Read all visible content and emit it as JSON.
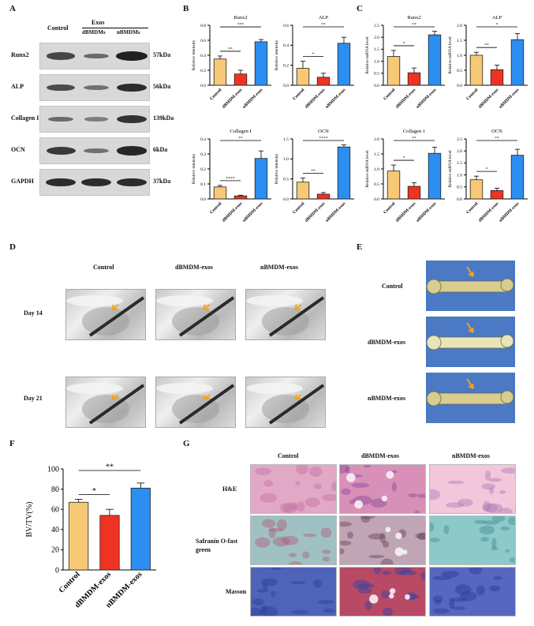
{
  "panels": {
    "a": "A",
    "b": "B",
    "c": "C",
    "d": "D",
    "e": "E",
    "f": "F",
    "g": "G"
  },
  "colors": {
    "control": "#f7c875",
    "dbmdm": "#ee3322",
    "nbmdm": "#2c8ef0",
    "bar_edge": "#222222"
  },
  "western": {
    "group_header": "Exos",
    "columns": [
      "Control",
      "dBMDMs",
      "nBMDMs"
    ],
    "rows": [
      {
        "protein": "Runx2",
        "kda": "57kDa",
        "intensity": [
          0.65,
          0.35,
          0.95
        ]
      },
      {
        "protein": "ALP",
        "kda": "56kDa",
        "intensity": [
          0.6,
          0.3,
          0.85
        ]
      },
      {
        "protein": "Collagen I",
        "kda": "139kDa",
        "intensity": [
          0.35,
          0.2,
          0.8
        ]
      },
      {
        "protein": "OCN",
        "kda": "6kDa",
        "intensity": [
          0.75,
          0.3,
          0.9
        ]
      },
      {
        "protein": "GAPDH",
        "kda": "37kDa",
        "intensity": [
          0.85,
          0.85,
          0.85
        ]
      }
    ]
  },
  "xray": {
    "columns": [
      "Control",
      "dBMDM-exos",
      "nBMDM-exos"
    ],
    "rows": [
      "Day 14",
      "Day 21"
    ]
  },
  "gross": {
    "rows": [
      "Control",
      "dBMDM-exos",
      "nBMDM-exos"
    ]
  },
  "histology": {
    "columns": [
      "Control",
      "dBMDM-exos",
      "nBMDM-exos"
    ],
    "rows": [
      "H&E",
      "Safranin O-fast green",
      "Masson"
    ]
  },
  "chart_data": [
    {
      "panel": "B",
      "type": "bar",
      "title": "Runx2",
      "ylabel": "Relative intensity",
      "categories": [
        "Control",
        "dBMDM-exos",
        "nBMDM-exos"
      ],
      "values": [
        0.35,
        0.15,
        0.58
      ],
      "errors": [
        0.04,
        0.05,
        0.03
      ],
      "ylim": [
        0,
        0.8
      ],
      "yticks": [
        "0.0",
        "0.2",
        "0.4",
        "0.6",
        "0.8"
      ],
      "sig": [
        {
          "a": 0,
          "b": 1,
          "label": "**"
        },
        {
          "a": 0,
          "b": 2,
          "label": "***"
        }
      ]
    },
    {
      "panel": "B",
      "type": "bar",
      "title": "ALP",
      "ylabel": "Relative intensity",
      "categories": [
        "Control",
        "dBMDM-exos",
        "nBMDM-exos"
      ],
      "values": [
        0.17,
        0.08,
        0.42
      ],
      "errors": [
        0.07,
        0.04,
        0.06
      ],
      "ylim": [
        0,
        0.6
      ],
      "yticks": [
        "0.0",
        "0.2",
        "0.4",
        "0.6"
      ],
      "sig": [
        {
          "a": 0,
          "b": 1,
          "label": "*"
        },
        {
          "a": 0,
          "b": 2,
          "label": "**"
        }
      ]
    },
    {
      "panel": "C",
      "type": "bar",
      "title": "Runx2",
      "ylabel": "Relative mRNA level",
      "categories": [
        "Control",
        "dBMDM-exos",
        "nBMDM-exos"
      ],
      "values": [
        1.2,
        0.52,
        2.1
      ],
      "errors": [
        0.25,
        0.2,
        0.15
      ],
      "ylim": [
        0,
        2.5
      ],
      "yticks": [
        "0.0",
        "0.5",
        "1.0",
        "1.5",
        "2.0",
        "2.5"
      ],
      "sig": [
        {
          "a": 0,
          "b": 1,
          "label": "*"
        },
        {
          "a": 0,
          "b": 2,
          "label": "**"
        }
      ]
    },
    {
      "panel": "C",
      "type": "bar",
      "title": "ALP",
      "ylabel": "Relative mRNA level",
      "categories": [
        "Control",
        "dBMDM-exos",
        "nBMDM-exos"
      ],
      "values": [
        1.0,
        0.52,
        1.52
      ],
      "errors": [
        0.1,
        0.15,
        0.2
      ],
      "ylim": [
        0,
        2.0
      ],
      "yticks": [
        "0.0",
        "0.5",
        "1.0",
        "1.5",
        "2.0"
      ],
      "sig": [
        {
          "a": 0,
          "b": 1,
          "label": "**"
        },
        {
          "a": 0,
          "b": 2,
          "label": "*"
        }
      ]
    },
    {
      "panel": "B",
      "type": "bar",
      "title": "Collagen I",
      "ylabel": "Relative intensity",
      "categories": [
        "Control",
        "dBMDM-exos",
        "nBMDM-exos"
      ],
      "values": [
        0.08,
        0.02,
        0.27
      ],
      "errors": [
        0.01,
        0.005,
        0.05
      ],
      "ylim": [
        0,
        0.4
      ],
      "yticks": [
        "0.0",
        "0.1",
        "0.2",
        "0.3",
        "0.4"
      ],
      "sig": [
        {
          "a": 0,
          "b": 1,
          "label": "****"
        },
        {
          "a": 0,
          "b": 2,
          "label": "**"
        }
      ]
    },
    {
      "panel": "B",
      "type": "bar",
      "title": "OCN",
      "ylabel": "Relative intensity",
      "categories": [
        "Control",
        "dBMDM-exos",
        "nBMDM-exos"
      ],
      "values": [
        0.42,
        0.12,
        1.3
      ],
      "errors": [
        0.1,
        0.04,
        0.05
      ],
      "ylim": [
        0,
        1.5
      ],
      "yticks": [
        "0.0",
        "0.5",
        "1.0",
        "1.5"
      ],
      "sig": [
        {
          "a": 0,
          "b": 1,
          "label": "**"
        },
        {
          "a": 0,
          "b": 2,
          "label": "****"
        }
      ]
    },
    {
      "panel": "C",
      "type": "bar",
      "title": "Collagen 1",
      "ylabel": "Relative mRNA level",
      "categories": [
        "Control",
        "dBMDM-exos",
        "nBMDM-exos"
      ],
      "values": [
        0.93,
        0.42,
        1.52
      ],
      "errors": [
        0.2,
        0.12,
        0.2
      ],
      "ylim": [
        0,
        2.0
      ],
      "yticks": [
        "0.0",
        "0.5",
        "1.0",
        "1.5",
        "2.0"
      ],
      "sig": [
        {
          "a": 0,
          "b": 1,
          "label": "*"
        },
        {
          "a": 0,
          "b": 2,
          "label": "**"
        }
      ]
    },
    {
      "panel": "C",
      "type": "bar",
      "title": "OCN",
      "ylabel": "Relative mRNA level",
      "categories": [
        "Control",
        "dBMDM-exos",
        "nBMDM-exos"
      ],
      "values": [
        0.8,
        0.35,
        1.82
      ],
      "errors": [
        0.15,
        0.1,
        0.25
      ],
      "ylim": [
        0,
        2.5
      ],
      "yticks": [
        "0.0",
        "0.5",
        "1.0",
        "1.5",
        "2.0",
        "2.5"
      ],
      "sig": [
        {
          "a": 0,
          "b": 1,
          "label": "*"
        },
        {
          "a": 0,
          "b": 2,
          "label": "**"
        }
      ]
    },
    {
      "panel": "F",
      "type": "bar",
      "title": "",
      "ylabel": "BV/TV(%)",
      "categories": [
        "Control",
        "dBMDM-exos",
        "nBMDM-exos"
      ],
      "values": [
        67,
        54,
        81
      ],
      "errors": [
        3,
        6,
        5
      ],
      "ylim": [
        0,
        100
      ],
      "yticks": [
        "0",
        "20",
        "40",
        "60",
        "80",
        "100"
      ],
      "sig": [
        {
          "a": 0,
          "b": 1,
          "label": "*"
        },
        {
          "a": 0,
          "b": 2,
          "label": "**"
        }
      ]
    }
  ]
}
